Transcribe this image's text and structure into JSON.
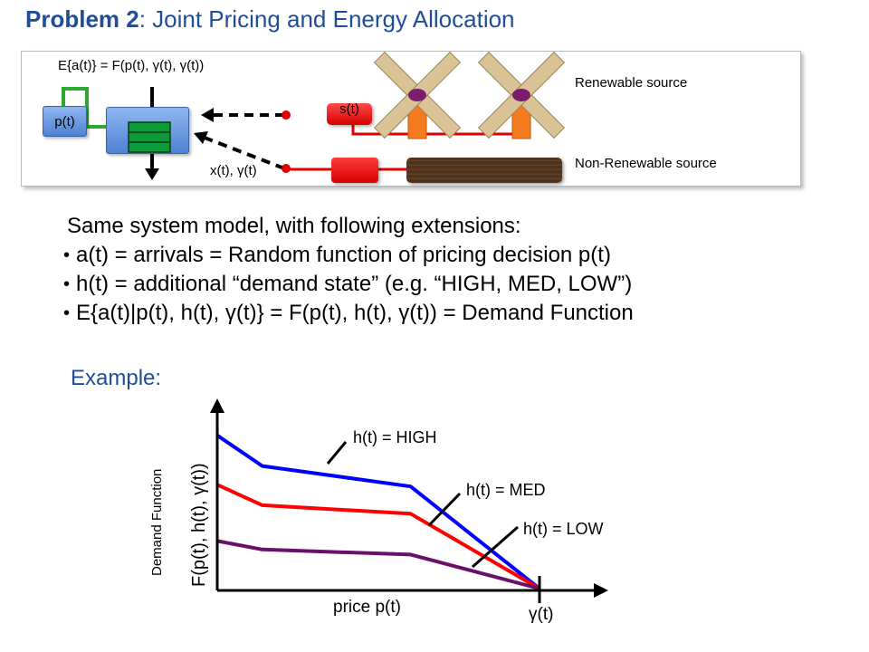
{
  "title": {
    "prefix": "Problem 2",
    "rest": ": Joint Pricing and Energy Allocation"
  },
  "diagram": {
    "expected_arrivals_label": "E{a(t)} = F(p(t), γ(t), γ(t))",
    "price_box_label": "p(t)",
    "renewable_box_label": "s(t)",
    "allocation_label": "x(t), γ(t)",
    "renewable_label": "Renewable source",
    "nonrenewable_label": "Non-Renewable source"
  },
  "body": {
    "heading": "Same system model, with following extensions:",
    "bullets": [
      "a(t) = arrivals = Random function of pricing decision p(t)",
      "h(t) = additional “demand state” (e.g. “HIGH, MED, LOW”)",
      "E{a(t)|p(t), h(t), γ(t)} = F(p(t), h(t), γ(t)) = Demand Function"
    ]
  },
  "example_label": "Example:",
  "chart_data": {
    "type": "line",
    "xlabel": "price p(t)",
    "ylabel": "F(p(t), h(t), γ(t))",
    "ylabel_secondary": "Demand Function",
    "x_tick_label": "γ(t)",
    "xlim": [
      0,
      1
    ],
    "ylim": [
      0,
      1
    ],
    "grid": false,
    "series": [
      {
        "name": "h(t) = HIGH",
        "color": "#0000ff",
        "x": [
          0,
          0.14,
          0.6,
          1.0
        ],
        "y": [
          0.9,
          0.72,
          0.6,
          0.0
        ]
      },
      {
        "name": "h(t) = MED",
        "color": "#ff0000",
        "x": [
          0,
          0.14,
          0.6,
          1.0
        ],
        "y": [
          0.61,
          0.49,
          0.44,
          0.0
        ]
      },
      {
        "name": "h(t) = LOW",
        "color": "#6a0f6a",
        "x": [
          0,
          0.14,
          0.6,
          1.0
        ],
        "y": [
          0.28,
          0.23,
          0.2,
          0.0
        ]
      }
    ]
  }
}
